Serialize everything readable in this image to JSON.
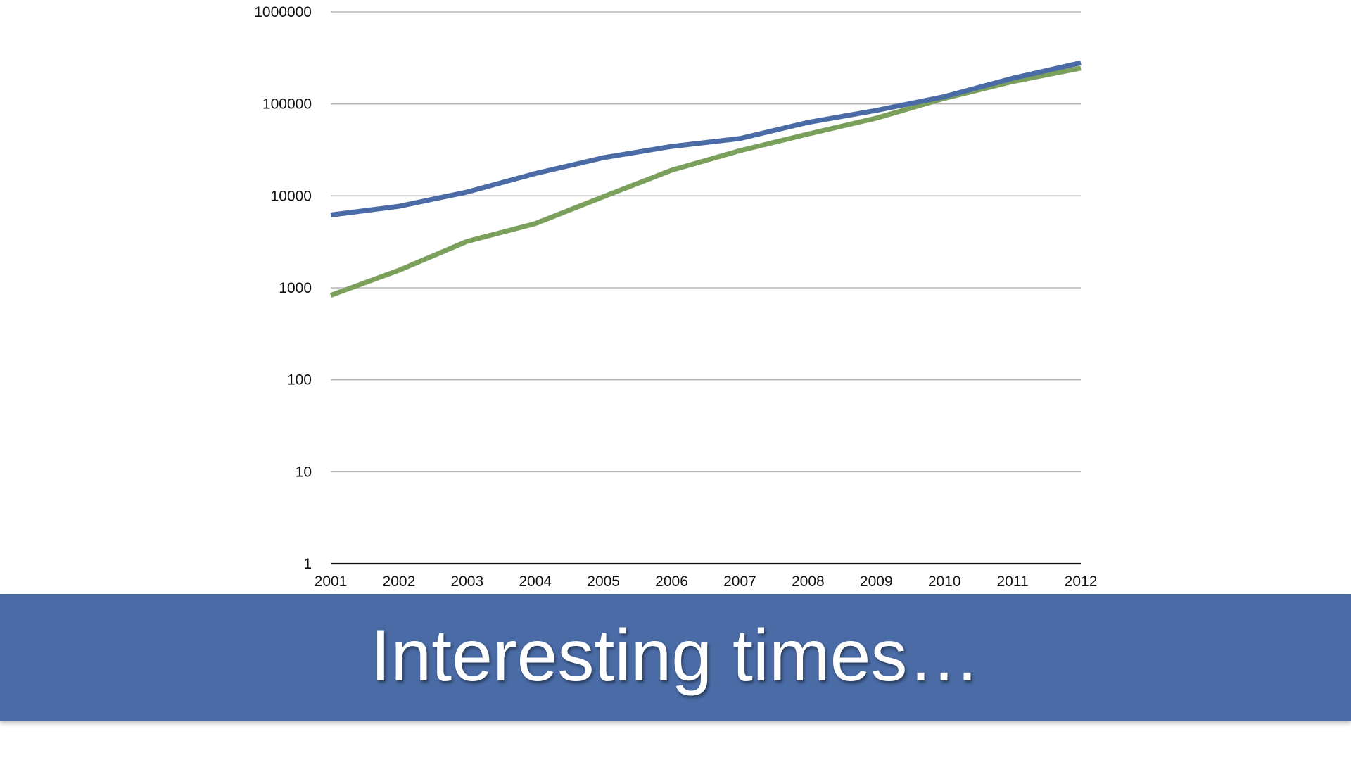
{
  "slide": {
    "title": "Interesting times…",
    "title_bar_color": "#4a6ba5"
  },
  "chart_data": {
    "type": "line",
    "x_scale": "category",
    "y_scale": "log",
    "ylim": [
      1,
      1000000
    ],
    "categories": [
      "2001",
      "2002",
      "2003",
      "2004",
      "2005",
      "2006",
      "2007",
      "2008",
      "2009",
      "2010",
      "2011",
      "2012"
    ],
    "ytick_labels": [
      "1000000",
      "100000",
      "10000",
      "1000",
      "100",
      "10",
      "1"
    ],
    "ytick_values": [
      1000000,
      100000,
      10000,
      1000,
      100,
      10,
      1
    ],
    "grid": true,
    "legend": "none",
    "title": "",
    "xlabel": "",
    "ylabel": "",
    "series": [
      {
        "color": "#4a6ba5",
        "values": [
          6200,
          7700,
          11000,
          17500,
          26000,
          34500,
          42000,
          63000,
          85000,
          120000,
          190000,
          280000
        ]
      },
      {
        "color": "#7ba05b",
        "values": [
          830,
          1550,
          3200,
          5000,
          9800,
          19000,
          31000,
          47000,
          70000,
          115000,
          175000,
          245000
        ]
      }
    ]
  }
}
